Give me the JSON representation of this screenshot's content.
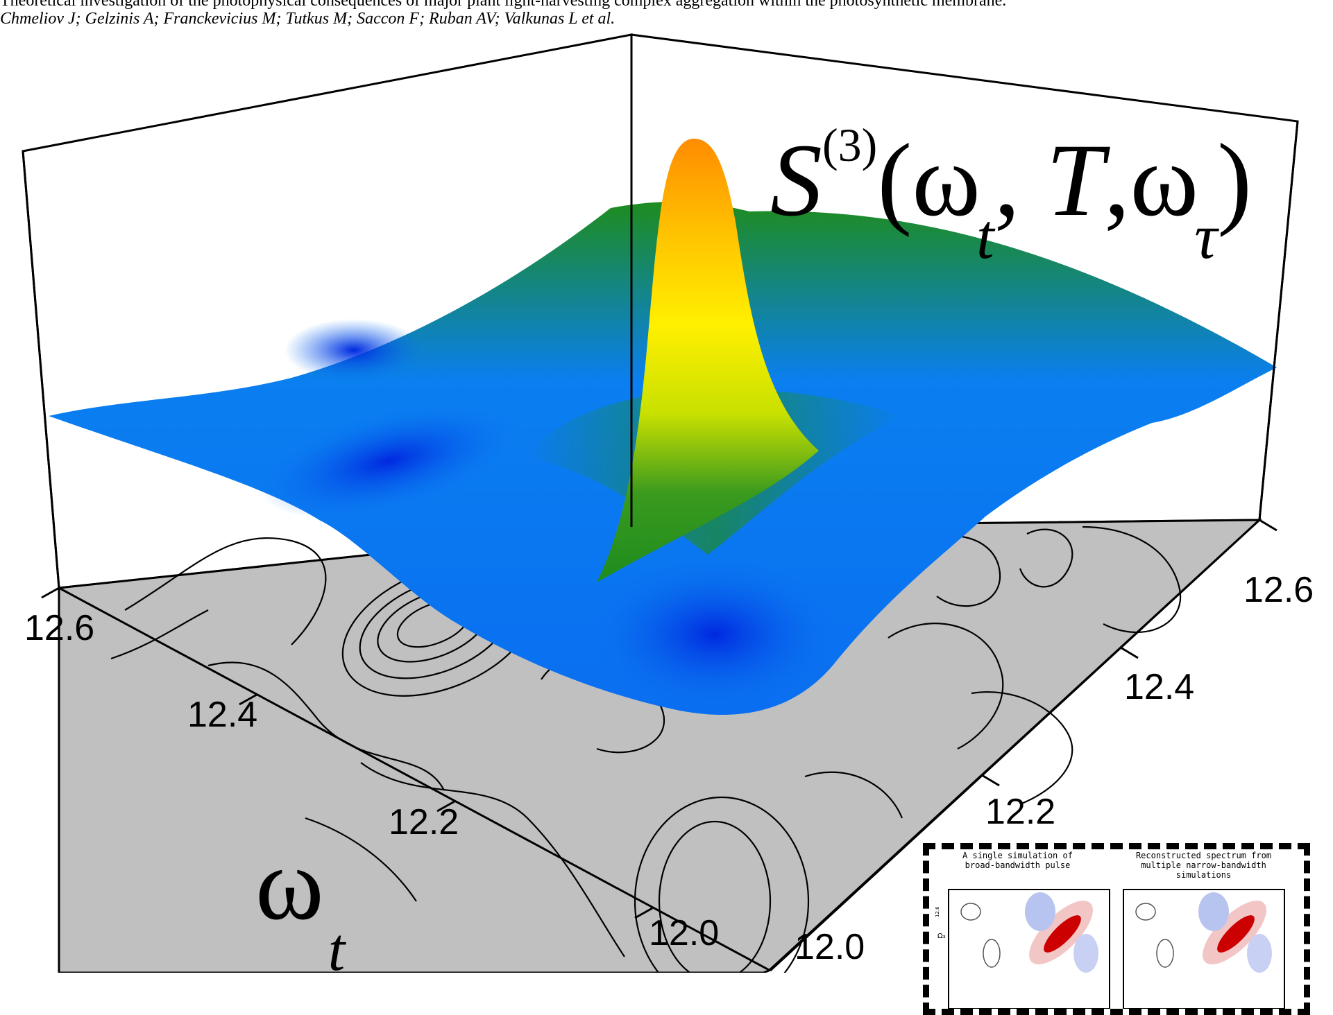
{
  "caption": {
    "line1": "Theoretical investigation of the photophysical consequences of major plant light-harvesting complex aggregation within the photosynthetic membrane.",
    "line2": "Chmeliov J; Gelzinis A; Franckevicius M; Tutkus M; Saccon F; Ruban AV; Valkunas L et al."
  },
  "title": {
    "base": "S",
    "sup": "(3)",
    "open": "(ω",
    "sub_t": "t",
    "sep1": ", ",
    "T": "T",
    "sep2": ",ω",
    "sub_tau": "τ",
    "close": ")"
  },
  "xlabel": {
    "base": "ω",
    "sub": "t"
  },
  "colors": {
    "floor": "#c0c0c0",
    "surface_low": "#0028e0",
    "surface_mid": "#0a7ff0",
    "green": "#1e8c1e",
    "yellow": "#fff000",
    "orange": "#ff8c00",
    "inset_red": "#cc0000",
    "inset_blue": "#3355dd"
  },
  "chart_data": {
    "type": "surface",
    "title": "S(3)(ωt, T, ωτ)",
    "x_axis": {
      "label": "ωt",
      "ticks": [
        "12.6",
        "12.4",
        "12.2",
        "12.0"
      ],
      "range": [
        12.0,
        12.7
      ]
    },
    "y_axis": {
      "label": "",
      "ticks": [
        "12.6",
        "12.4",
        "12.2",
        "12.0"
      ],
      "range": [
        12.0,
        12.7
      ]
    },
    "peak": {
      "x": 12.3,
      "y": 12.3,
      "z": 1.0
    },
    "baseline_z": 0.12,
    "minima": [
      {
        "x": 12.05,
        "y": 12.25,
        "z": 0.0
      },
      {
        "x": 12.55,
        "y": 12.45,
        "z": 0.02
      },
      {
        "x": 12.2,
        "y": 12.55,
        "z": 0.04
      }
    ],
    "projection": "contour lines on grey floor"
  },
  "inset": {
    "panel1_title": "A single simulation of\nbroad-bandwidth pulse",
    "panel2_title": "Reconstructed spectrum from\nmultiple narrow-bandwidth\nsimulations",
    "ylabel": "Ω₃",
    "ytick": "12.6"
  }
}
